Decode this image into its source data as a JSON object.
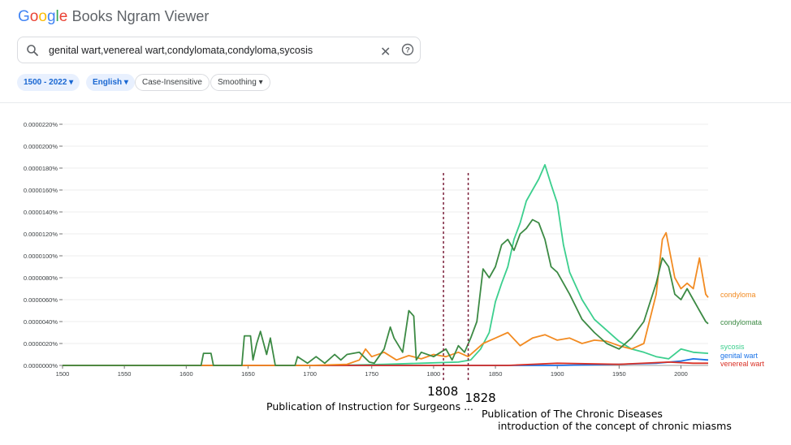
{
  "app": {
    "logo_letters": [
      "G",
      "o",
      "o",
      "g",
      "l",
      "e"
    ],
    "logo_colors": [
      "#4285f4",
      "#ea4335",
      "#fbbc05",
      "#4285f4",
      "#34a853",
      "#ea4335"
    ],
    "title_rest": "Books Ngram Viewer"
  },
  "search": {
    "query": "genital wart,venereal wart,condylomata,condyloma,sycosis",
    "search_icon": "search-icon",
    "clear_glyph": "✕",
    "help_icon": "help-circle-icon"
  },
  "filters": {
    "year_range": "1500 - 2022",
    "language": "English",
    "case": "Case-Insensitive",
    "smoothing": "Smoothing",
    "dropdown_glyph": "▾"
  },
  "chart_data": {
    "type": "line",
    "title": "",
    "xlabel": "",
    "ylabel": "",
    "xlim": [
      1500,
      2022
    ],
    "ylim": [
      0,
      2.2e-05
    ],
    "x_ticks": [
      "1500",
      "1550",
      "1600",
      "1650",
      "1700",
      "1750",
      "1800",
      "1850",
      "1900",
      "1950",
      "2000"
    ],
    "y_ticks": [
      "0.0000000%",
      "0.0000020%",
      "0.0000040%",
      "0.0000060%",
      "0.0000080%",
      "0.0000100%",
      "0.0000120%",
      "0.0000140%",
      "0.0000160%",
      "0.0000180%",
      "0.0000200%",
      "0.0000220%"
    ],
    "legend_position": "right (labels at line ends)",
    "series": [
      {
        "name": "sycosis",
        "color": "#3ccf8e",
        "points": [
          [
            1500,
            0
          ],
          [
            1720,
            0
          ],
          [
            1760,
            1e-07
          ],
          [
            1790,
            2e-07
          ],
          [
            1820,
            3e-07
          ],
          [
            1830,
            5e-07
          ],
          [
            1838,
            1.5e-06
          ],
          [
            1845,
            3e-06
          ],
          [
            1850,
            5.8e-06
          ],
          [
            1855,
            7.5e-06
          ],
          [
            1860,
            9e-06
          ],
          [
            1865,
            1.15e-05
          ],
          [
            1870,
            1.3e-05
          ],
          [
            1875,
            1.5e-05
          ],
          [
            1880,
            1.6e-05
          ],
          [
            1885,
            1.7e-05
          ],
          [
            1890,
            1.83e-05
          ],
          [
            1895,
            1.65e-05
          ],
          [
            1900,
            1.48e-05
          ],
          [
            1905,
            1.1e-05
          ],
          [
            1910,
            8.5e-06
          ],
          [
            1920,
            6e-06
          ],
          [
            1930,
            4.2e-06
          ],
          [
            1940,
            3.2e-06
          ],
          [
            1950,
            2.2e-06
          ],
          [
            1960,
            1.5e-06
          ],
          [
            1970,
            1.2e-06
          ],
          [
            1980,
            8e-07
          ],
          [
            1990,
            6e-07
          ],
          [
            2000,
            1.5e-06
          ],
          [
            2010,
            1.2e-06
          ],
          [
            2022,
            1.1e-06
          ]
        ]
      },
      {
        "name": "genital wart",
        "color": "#1a73e8",
        "points": [
          [
            1500,
            0
          ],
          [
            1900,
            0
          ],
          [
            1950,
            1e-07
          ],
          [
            1980,
            2e-07
          ],
          [
            2000,
            4e-07
          ],
          [
            2010,
            6e-07
          ],
          [
            2022,
            5e-07
          ]
        ]
      },
      {
        "name": "venereal wart",
        "color": "#d93025",
        "points": [
          [
            1500,
            0
          ],
          [
            1860,
            0
          ],
          [
            1880,
            1e-07
          ],
          [
            1900,
            2e-07
          ],
          [
            1950,
            1e-07
          ],
          [
            1990,
            3e-07
          ],
          [
            2010,
            2e-07
          ],
          [
            2022,
            2e-07
          ]
        ]
      },
      {
        "name": "condyloma",
        "color": "#f28b22",
        "points": [
          [
            1500,
            0
          ],
          [
            1700,
            0
          ],
          [
            1730,
            1e-07
          ],
          [
            1740,
            5e-07
          ],
          [
            1745,
            1.5e-06
          ],
          [
            1750,
            8e-07
          ],
          [
            1760,
            1.2e-06
          ],
          [
            1770,
            5e-07
          ],
          [
            1780,
            9e-07
          ],
          [
            1790,
            6e-07
          ],
          [
            1800,
            1e-06
          ],
          [
            1810,
            8e-07
          ],
          [
            1820,
            1.2e-06
          ],
          [
            1828,
            8e-07
          ],
          [
            1835,
            1.5e-06
          ],
          [
            1840,
            2e-06
          ],
          [
            1850,
            2.5e-06
          ],
          [
            1860,
            3e-06
          ],
          [
            1870,
            1.8e-06
          ],
          [
            1880,
            2.5e-06
          ],
          [
            1890,
            2.8e-06
          ],
          [
            1900,
            2.3e-06
          ],
          [
            1910,
            2.5e-06
          ],
          [
            1920,
            2e-06
          ],
          [
            1930,
            2.3e-06
          ],
          [
            1940,
            2.2e-06
          ],
          [
            1950,
            1.8e-06
          ],
          [
            1960,
            1.5e-06
          ],
          [
            1970,
            2e-06
          ],
          [
            1980,
            6.5e-06
          ],
          [
            1985,
            1.15e-05
          ],
          [
            1988,
            1.21e-05
          ],
          [
            1995,
            8e-06
          ],
          [
            2000,
            7e-06
          ],
          [
            2005,
            7.5e-06
          ],
          [
            2010,
            7e-06
          ],
          [
            2015,
            9.8e-06
          ],
          [
            2020,
            6.5e-06
          ],
          [
            2022,
            6.2e-06
          ]
        ]
      },
      {
        "name": "condylomata",
        "color": "#3c8a44",
        "points": [
          [
            1500,
            0
          ],
          [
            1612,
            0
          ],
          [
            1614,
            1.1e-06
          ],
          [
            1620,
            1.1e-06
          ],
          [
            1622,
            0
          ],
          [
            1645,
            0
          ],
          [
            1647,
            2.7e-06
          ],
          [
            1652,
            2.7e-06
          ],
          [
            1654,
            5e-07
          ],
          [
            1657,
            2e-06
          ],
          [
            1660,
            3.1e-06
          ],
          [
            1665,
            1e-06
          ],
          [
            1668,
            2.5e-06
          ],
          [
            1672,
            0
          ],
          [
            1688,
            0
          ],
          [
            1690,
            8e-07
          ],
          [
            1698,
            2e-07
          ],
          [
            1705,
            8e-07
          ],
          [
            1712,
            2e-07
          ],
          [
            1720,
            1e-06
          ],
          [
            1725,
            5e-07
          ],
          [
            1730,
            1e-06
          ],
          [
            1740,
            1.2e-06
          ],
          [
            1748,
            3e-07
          ],
          [
            1752,
            2e-07
          ],
          [
            1760,
            1.5e-06
          ],
          [
            1765,
            3.5e-06
          ],
          [
            1768,
            2.5e-06
          ],
          [
            1775,
            1.2e-06
          ],
          [
            1780,
            5e-06
          ],
          [
            1784,
            4.5e-06
          ],
          [
            1786,
            5e-07
          ],
          [
            1790,
            1.2e-06
          ],
          [
            1800,
            8e-07
          ],
          [
            1810,
            1.5e-06
          ],
          [
            1815,
            5e-07
          ],
          [
            1820,
            1.8e-06
          ],
          [
            1825,
            1.2e-06
          ],
          [
            1830,
            2.5e-06
          ],
          [
            1835,
            4e-06
          ],
          [
            1840,
            8.8e-06
          ],
          [
            1845,
            8e-06
          ],
          [
            1850,
            9e-06
          ],
          [
            1855,
            1.1e-05
          ],
          [
            1860,
            1.15e-05
          ],
          [
            1865,
            1.05e-05
          ],
          [
            1870,
            1.2e-05
          ],
          [
            1875,
            1.25e-05
          ],
          [
            1880,
            1.33e-05
          ],
          [
            1885,
            1.3e-05
          ],
          [
            1890,
            1.15e-05
          ],
          [
            1895,
            9e-06
          ],
          [
            1900,
            8.5e-06
          ],
          [
            1910,
            6.5e-06
          ],
          [
            1920,
            4.2e-06
          ],
          [
            1930,
            3e-06
          ],
          [
            1940,
            2e-06
          ],
          [
            1950,
            1.5e-06
          ],
          [
            1960,
            2.5e-06
          ],
          [
            1970,
            4e-06
          ],
          [
            1980,
            7.5e-06
          ],
          [
            1985,
            9.8e-06
          ],
          [
            1990,
            9e-06
          ],
          [
            1995,
            6.5e-06
          ],
          [
            2000,
            6e-06
          ],
          [
            2005,
            7e-06
          ],
          [
            2010,
            6e-06
          ],
          [
            2015,
            5e-06
          ],
          [
            2020,
            4e-06
          ],
          [
            2022,
            3.8e-06
          ]
        ]
      }
    ],
    "annotations": [
      {
        "year": 1808,
        "year_label": "1808",
        "text": "Publication of Instruction for Surgeons ...",
        "color": "#7b1f3a"
      },
      {
        "year": 1828,
        "year_label": "1828",
        "text": "Publication of The Chronic Diseases",
        "text2": "introduction of the concept of chronic miasms",
        "color": "#7b1f3a"
      }
    ]
  }
}
